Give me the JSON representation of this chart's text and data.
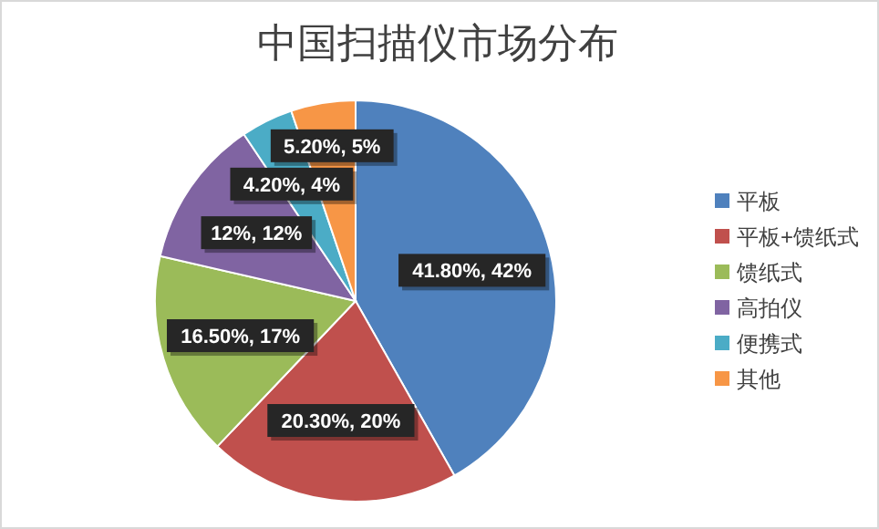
{
  "chart_data": {
    "type": "pie",
    "title": "中国扫描仪市场分布",
    "categories": [
      "平板",
      "平板+馈纸式",
      "馈纸式",
      "高拍仪",
      "便携式",
      "其他"
    ],
    "values": [
      41.8,
      20.3,
      16.5,
      12,
      4.2,
      5.2
    ],
    "value_labels": [
      "41.80%, 42%",
      "20.30%, 20%",
      "16.50%, 17%",
      "12%, 12%",
      "4.20%, 4%",
      "5.20%, 5%"
    ],
    "colors": [
      "#4f81bd",
      "#c0504d",
      "#9bbb59",
      "#8064a2",
      "#4bacc6",
      "#f79646"
    ],
    "legend": "right"
  }
}
